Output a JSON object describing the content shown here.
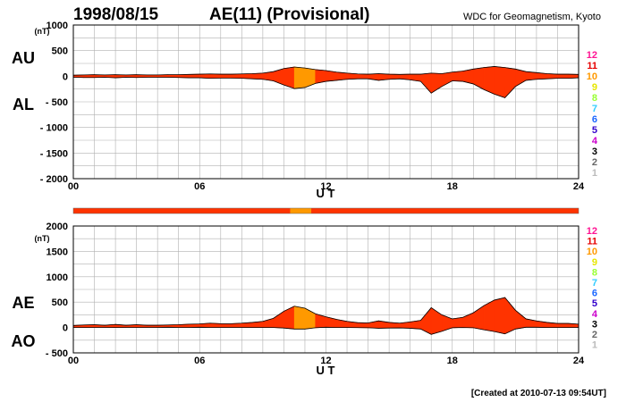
{
  "header": {
    "date": "1998/08/15",
    "title": "AE(11) (Provisional)",
    "source": "WDC for Geomagnetism, Kyoto"
  },
  "footer": {
    "created": "[Created at 2010-07-13 09:54UT]"
  },
  "colors": {
    "fill_main": "#ff3300",
    "fill_alt": "#ff9900",
    "grid": "#b0b0b0",
    "outline": "#000000"
  },
  "legend": {
    "items": [
      {
        "label": "12",
        "color": "#ff1493"
      },
      {
        "label": "11",
        "color": "#e60000"
      },
      {
        "label": "10",
        "color": "#ff9900"
      },
      {
        "label": "9",
        "color": "#e6e600"
      },
      {
        "label": "8",
        "color": "#99ff33"
      },
      {
        "label": "7",
        "color": "#33ccff"
      },
      {
        "label": "6",
        "color": "#1a66ff"
      },
      {
        "label": "5",
        "color": "#3300cc"
      },
      {
        "label": "4",
        "color": "#cc00cc"
      },
      {
        "label": "3",
        "color": "#000000"
      },
      {
        "label": "2",
        "color": "#666666"
      },
      {
        "label": "1",
        "color": "#bbbbbb"
      }
    ]
  },
  "station_bar": [
    {
      "start": 0,
      "end": 10.3,
      "stations": 11
    },
    {
      "start": 10.3,
      "end": 11.3,
      "stations": 10
    },
    {
      "start": 11.3,
      "end": 24,
      "stations": 11
    }
  ],
  "chart_data": [
    {
      "type": "area",
      "upper_label": "AU",
      "lower_label": "AL",
      "unit": "(nT)",
      "xlabel": "U T",
      "xlim": [
        0,
        24
      ],
      "ylim": [
        -2000,
        1000
      ],
      "x_ticks": [
        "00",
        "06",
        "12",
        "18",
        "24"
      ],
      "y_ticks": [
        "1000",
        "500",
        "0",
        "- 500",
        "- 1000",
        "- 1500",
        "- 2000"
      ],
      "y_tick_values": [
        1000,
        500,
        0,
        -500,
        -1000,
        -1500,
        -2000
      ],
      "x": [
        0,
        0.5,
        1,
        1.5,
        2,
        2.5,
        3,
        3.5,
        4,
        4.5,
        5,
        5.5,
        6,
        6.5,
        7,
        7.5,
        8,
        8.5,
        9,
        9.5,
        10,
        10.5,
        11,
        11.5,
        12,
        12.5,
        13,
        13.5,
        14,
        14.5,
        15,
        15.5,
        16,
        16.5,
        17,
        17.5,
        18,
        18.5,
        19,
        19.5,
        20,
        20.5,
        21,
        21.5,
        22,
        22.5,
        23,
        23.5,
        24
      ],
      "series": [
        {
          "name": "AU",
          "values": [
            20,
            25,
            30,
            25,
            30,
            25,
            30,
            25,
            25,
            30,
            30,
            35,
            40,
            45,
            40,
            40,
            45,
            50,
            60,
            90,
            150,
            180,
            160,
            130,
            110,
            80,
            60,
            45,
            40,
            50,
            40,
            35,
            40,
            40,
            60,
            50,
            80,
            100,
            140,
            170,
            190,
            170,
            140,
            90,
            70,
            50,
            40,
            40,
            35
          ]
        },
        {
          "name": "AL",
          "values": [
            -20,
            -25,
            -25,
            -20,
            -30,
            -20,
            -25,
            -20,
            -20,
            -20,
            -25,
            -30,
            -30,
            -40,
            -35,
            -35,
            -40,
            -50,
            -60,
            -90,
            -170,
            -240,
            -220,
            -140,
            -100,
            -80,
            -60,
            -50,
            -50,
            -80,
            -60,
            -50,
            -70,
            -100,
            -330,
            -200,
            -90,
            -100,
            -150,
            -260,
            -350,
            -420,
            -200,
            -80,
            -60,
            -50,
            -40,
            -40,
            -30
          ]
        }
      ]
    },
    {
      "type": "area",
      "upper_label": "AE",
      "lower_label": "AO",
      "unit": "(nT)",
      "xlabel": "U T",
      "xlim": [
        0,
        24
      ],
      "ylim": [
        -500,
        2000
      ],
      "x_ticks": [
        "00",
        "06",
        "12",
        "18",
        "24"
      ],
      "y_ticks": [
        "2000",
        "1500",
        "1000",
        "500",
        "0",
        "- 500"
      ],
      "y_tick_values": [
        2000,
        1500,
        1000,
        500,
        0,
        -500
      ],
      "x": [
        0,
        0.5,
        1,
        1.5,
        2,
        2.5,
        3,
        3.5,
        4,
        4.5,
        5,
        5.5,
        6,
        6.5,
        7,
        7.5,
        8,
        8.5,
        9,
        9.5,
        10,
        10.5,
        11,
        11.5,
        12,
        12.5,
        13,
        13.5,
        14,
        14.5,
        15,
        15.5,
        16,
        16.5,
        17,
        17.5,
        18,
        18.5,
        19,
        19.5,
        20,
        20.5,
        21,
        21.5,
        22,
        22.5,
        23,
        23.5,
        24
      ],
      "series": [
        {
          "name": "AE",
          "values": [
            40,
            50,
            55,
            45,
            60,
            45,
            55,
            45,
            45,
            50,
            55,
            65,
            70,
            85,
            75,
            75,
            85,
            100,
            120,
            180,
            320,
            420,
            380,
            270,
            210,
            160,
            120,
            95,
            90,
            130,
            100,
            85,
            110,
            140,
            390,
            250,
            170,
            200,
            290,
            430,
            540,
            590,
            340,
            170,
            130,
            100,
            80,
            80,
            65
          ]
        },
        {
          "name": "AO",
          "values": [
            0,
            0,
            2,
            2,
            0,
            2,
            2,
            2,
            2,
            5,
            2,
            2,
            5,
            2,
            2,
            2,
            2,
            0,
            0,
            0,
            -10,
            -30,
            -30,
            -5,
            5,
            0,
            0,
            -2,
            -5,
            -15,
            -10,
            -8,
            -15,
            -30,
            -135,
            -75,
            -5,
            0,
            -5,
            -45,
            -80,
            -125,
            -30,
            5,
            5,
            0,
            0,
            0,
            2
          ]
        }
      ]
    }
  ]
}
